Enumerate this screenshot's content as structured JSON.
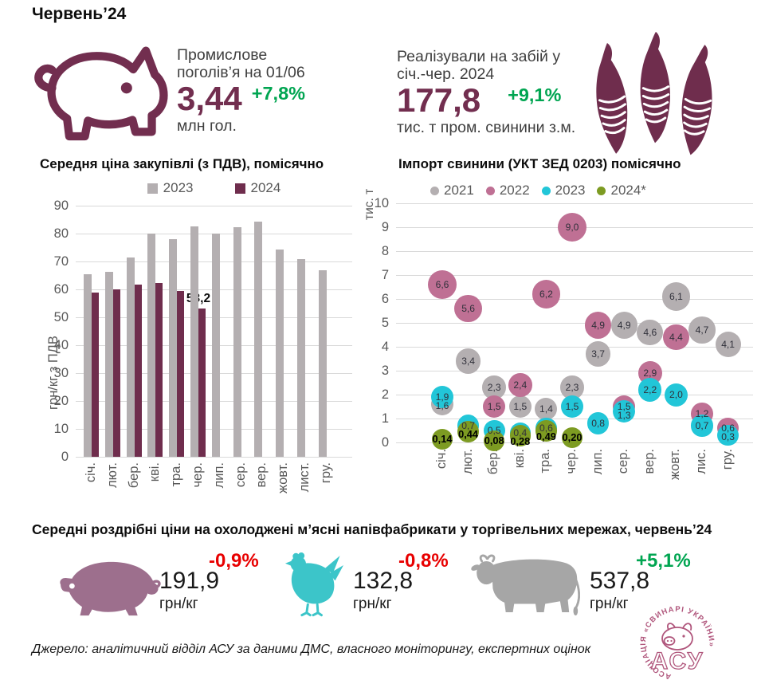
{
  "header": {
    "title": "Червень’24"
  },
  "kpis": {
    "herd": {
      "label": "Промислове поголів’я на 01/06",
      "value": "3,44",
      "delta": "+7,8%",
      "delta_color": "#00a551",
      "unit": "млн гол."
    },
    "slaughter": {
      "label": "Реалізували на забій у січ.-чер. 2024",
      "value": "177,8",
      "delta": "+9,1%",
      "delta_color": "#00a551",
      "unit": "тис. т пром. свинини з.м."
    }
  },
  "chart_data": [
    {
      "type": "bar",
      "title": "Середня ціна закупівлі (з ПДВ), помісячно",
      "ylabel": "грн/кг з ПДВ",
      "xlabel": "",
      "ylim": [
        0,
        90
      ],
      "ytick_step": 10,
      "grid": true,
      "legend_position": "top",
      "categories": [
        "січ.",
        "лют.",
        "бер.",
        "кві.",
        "тра.",
        "чер.",
        "лип.",
        "сер.",
        "вер.",
        "жовт.",
        "лист.",
        "гру."
      ],
      "series": [
        {
          "name": "2023",
          "color": "#b4afb1",
          "values": [
            65.3,
            66.3,
            71.5,
            80.0,
            78.1,
            82.7,
            80.0,
            82.3,
            84.2,
            74.2,
            70.8,
            67.0
          ]
        },
        {
          "name": "2024",
          "color": "#6f2d4d",
          "values": [
            59.0,
            60.1,
            61.6,
            62.3,
            59.3,
            53.2,
            null,
            null,
            null,
            null,
            null,
            null
          ]
        }
      ],
      "data_labels": [
        {
          "series": "2024",
          "category": "чер.",
          "text": "53,2"
        }
      ]
    },
    {
      "type": "scatter",
      "title": "Імпорт свинини (УКТ ЗЕД 0203) помісячно",
      "ylabel": "тис. т",
      "xlabel": "",
      "ylim": [
        0,
        10
      ],
      "ytick_step": 1,
      "grid": true,
      "legend_position": "top",
      "categories": [
        "січ.",
        "лют.",
        "бер.",
        "кві.",
        "тра.",
        "чер.",
        "лип.",
        "сер.",
        "вер.",
        "жовт.",
        "лис.",
        "гру."
      ],
      "series": [
        {
          "name": "2021",
          "color": "#b4afb1",
          "values": [
            1.6,
            3.4,
            2.3,
            1.5,
            1.4,
            2.3,
            3.7,
            4.9,
            4.6,
            6.1,
            4.7,
            4.1
          ],
          "labels": [
            "1,6",
            "3,4",
            "2,3",
            "1,5",
            "1,4",
            "2,3",
            "3,7",
            "4,9",
            "4,6",
            "6,1",
            "4,7",
            "4,1"
          ]
        },
        {
          "name": "2022",
          "color": "#bf7094",
          "values": [
            6.6,
            5.6,
            1.5,
            2.4,
            6.2,
            9.0,
            4.9,
            1.5,
            2.9,
            4.4,
            1.2,
            0.6
          ],
          "labels": [
            "6,6",
            "5,6",
            "1,5",
            "2,4",
            "6,2",
            "9,0",
            "4,9",
            "1,5",
            "2,9",
            "4,4",
            "1,2",
            "0,6"
          ]
        },
        {
          "name": "2023",
          "color": "#22c6d8",
          "values": [
            1.9,
            0.7,
            0.5,
            0.4,
            0.6,
            1.5,
            0.8,
            1.3,
            2.2,
            2.0,
            0.7,
            0.3
          ],
          "labels": [
            "1,9",
            "0,7",
            "0,5",
            "0,4",
            "0,6",
            "1,5",
            "0,8",
            "1,3",
            "2,2",
            "2,0",
            "0,7",
            "0,3"
          ]
        },
        {
          "name": "2024*",
          "color": "#7d9b22",
          "bold_labels": true,
          "values": [
            0.14,
            0.44,
            0.08,
            0.28,
            0.49,
            0.2,
            null,
            null,
            null,
            null,
            null,
            null
          ],
          "labels": [
            "0,14",
            "0,44",
            "0,08",
            "0,28",
            "0,49",
            "0,20",
            null,
            null,
            null,
            null,
            null,
            null
          ]
        }
      ]
    }
  ],
  "retail": {
    "title": "Середні роздрібні ціни на охолоджені м’ясні напівфабрикати у торгівельних мережах, червень’24",
    "items": [
      {
        "name": "pork",
        "price": "191,9",
        "unit": "грн/кг",
        "delta": "-0,9%",
        "delta_color": "#e80000",
        "icon_color": "#9d6f8d"
      },
      {
        "name": "chicken",
        "price": "132,8",
        "unit": "грн/кг",
        "delta": "-0,8%",
        "delta_color": "#e80000",
        "icon_color": "#3cc5c9"
      },
      {
        "name": "beef",
        "price": "537,8",
        "unit": "грн/кг",
        "delta": "+5,1%",
        "delta_color": "#00a551",
        "icon_color": "#a6a6a6"
      }
    ]
  },
  "source": "Джерело: аналітичний відділ АСУ за даними ДМС, власного моніторингу, експертних оцінок",
  "logo": {
    "ring_text": "АСОЦІАЦІЯ «СВИНАРІ УКРАЇНИ»",
    "acronym": "АСУ",
    "color": "#b0567c"
  },
  "brand": {
    "maroon": "#722e4f",
    "green": "#00a551",
    "red": "#e80000",
    "axis_text": "#595959",
    "grid": "#d9d9d9"
  }
}
